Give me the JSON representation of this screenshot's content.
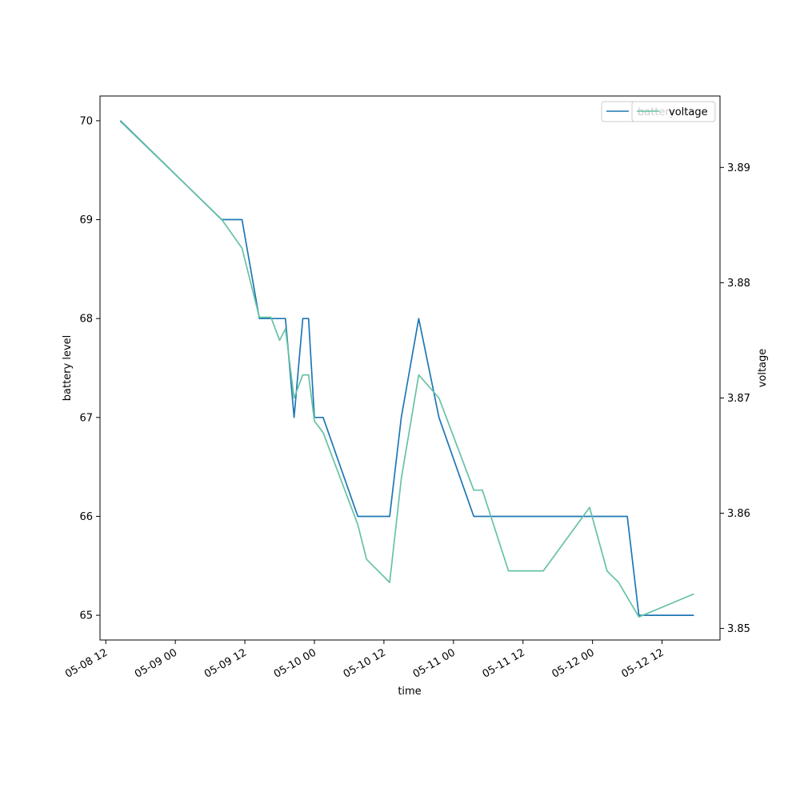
{
  "chart_data": {
    "type": "line",
    "title": "",
    "xlabel": "time",
    "ylabel_left": "battery level",
    "ylabel_right": "voltage",
    "xlim": [
      "2018-05-08 11:00",
      "2018-05-12 22:00"
    ],
    "ylim_left": [
      64.75,
      70.25
    ],
    "ylim_right": [
      3.849,
      3.8962
    ],
    "x_ticks": [
      {
        "t": "2018-05-08 12:00",
        "label": "05-08 12"
      },
      {
        "t": "2018-05-09 00:00",
        "label": "05-09 00"
      },
      {
        "t": "2018-05-09 12:00",
        "label": "05-09 12"
      },
      {
        "t": "2018-05-10 00:00",
        "label": "05-10 00"
      },
      {
        "t": "2018-05-10 12:00",
        "label": "05-10 12"
      },
      {
        "t": "2018-05-11 00:00",
        "label": "05-11 00"
      },
      {
        "t": "2018-05-11 12:00",
        "label": "05-11 12"
      },
      {
        "t": "2018-05-12 00:00",
        "label": "05-12 00"
      },
      {
        "t": "2018-05-12 12:00",
        "label": "05-12 12"
      }
    ],
    "y_ticks_left": [
      65,
      66,
      67,
      68,
      69,
      70
    ],
    "y_ticks_right": [
      3.85,
      3.86,
      3.87,
      3.88,
      3.89
    ],
    "grid": false,
    "legend_position": "top-right",
    "series": [
      {
        "name": "battery",
        "axis": "left",
        "color": "#1f77b4",
        "points": [
          [
            "2018-05-08 14:30",
            70
          ],
          [
            "2018-05-09 08:00",
            69
          ],
          [
            "2018-05-09 11:30",
            69
          ],
          [
            "2018-05-09 14:30",
            68
          ],
          [
            "2018-05-09 16:30",
            68
          ],
          [
            "2018-05-09 19:00",
            68
          ],
          [
            "2018-05-09 20:30",
            67
          ],
          [
            "2018-05-09 22:00",
            68
          ],
          [
            "2018-05-09 23:00",
            68
          ],
          [
            "2018-05-10 00:00",
            67
          ],
          [
            "2018-05-10 01:30",
            67
          ],
          [
            "2018-05-10 07:30",
            66
          ],
          [
            "2018-05-10 13:00",
            66
          ],
          [
            "2018-05-10 15:00",
            67
          ],
          [
            "2018-05-10 18:00",
            68
          ],
          [
            "2018-05-10 21:30",
            67
          ],
          [
            "2018-05-11 03:30",
            66
          ],
          [
            "2018-05-11 06:00",
            66
          ],
          [
            "2018-05-11 11:30",
            66
          ],
          [
            "2018-05-11 17:30",
            66
          ],
          [
            "2018-05-12 00:00",
            66
          ],
          [
            "2018-05-12 06:00",
            66
          ],
          [
            "2018-05-12 08:00",
            65
          ],
          [
            "2018-05-12 17:30",
            65
          ]
        ]
      },
      {
        "name": "voltage",
        "axis": "right",
        "color": "#66c2a5",
        "points": [
          [
            "2018-05-08 14:30",
            3.894
          ],
          [
            "2018-05-09 08:00",
            3.8855
          ],
          [
            "2018-05-09 11:30",
            3.883
          ],
          [
            "2018-05-09 14:30",
            3.877
          ],
          [
            "2018-05-09 16:30",
            3.877
          ],
          [
            "2018-05-09 18:00",
            3.875
          ],
          [
            "2018-05-09 19:00",
            3.876
          ],
          [
            "2018-05-09 20:30",
            3.87
          ],
          [
            "2018-05-09 22:00",
            3.872
          ],
          [
            "2018-05-09 23:00",
            3.872
          ],
          [
            "2018-05-10 00:00",
            3.868
          ],
          [
            "2018-05-10 01:30",
            3.867
          ],
          [
            "2018-05-10 07:30",
            3.859
          ],
          [
            "2018-05-10 09:00",
            3.856
          ],
          [
            "2018-05-10 13:00",
            3.854
          ],
          [
            "2018-05-10 15:00",
            3.863
          ],
          [
            "2018-05-10 18:00",
            3.872
          ],
          [
            "2018-05-10 21:30",
            3.87
          ],
          [
            "2018-05-11 03:30",
            3.862
          ],
          [
            "2018-05-11 05:00",
            3.862
          ],
          [
            "2018-05-11 09:30",
            3.855
          ],
          [
            "2018-05-11 15:30",
            3.855
          ],
          [
            "2018-05-11 23:30",
            3.8605
          ],
          [
            "2018-05-12 02:30",
            3.855
          ],
          [
            "2018-05-12 04:30",
            3.854
          ],
          [
            "2018-05-12 08:00",
            3.851
          ],
          [
            "2018-05-12 17:30",
            3.853
          ]
        ]
      }
    ]
  },
  "legend_front": {
    "label": "voltage"
  },
  "legend_back": {
    "label": "battery"
  }
}
